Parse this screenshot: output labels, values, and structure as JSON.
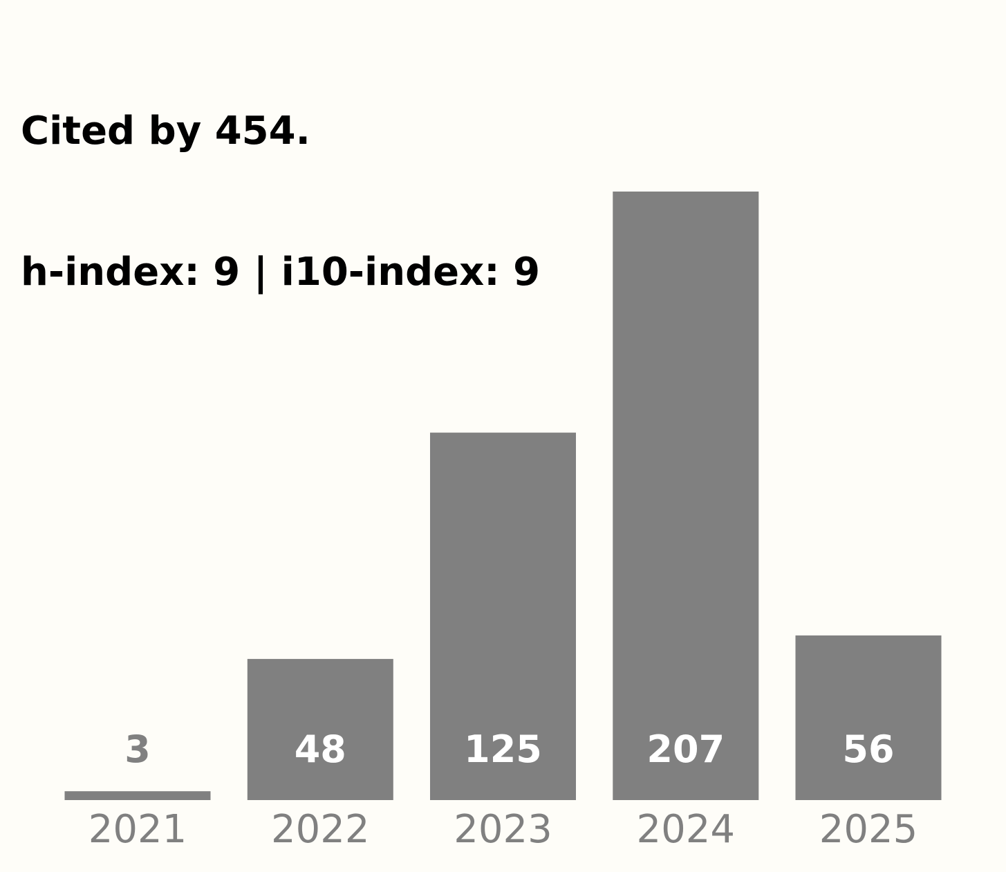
{
  "header": {
    "title_line1": "Cited by 454.",
    "title_line2": "h-index: 9 | i10-index: 9"
  },
  "colors": {
    "background": "#FEFDF8",
    "bar": "#808080",
    "label_inside": "#FFFFFF",
    "label_outside": "#808080",
    "tick": "#808080",
    "title": "#000000"
  },
  "chart_data": {
    "type": "bar",
    "title": "Cited by 454.\nh-index: 9 | i10-index: 9",
    "categories": [
      "2021",
      "2022",
      "2023",
      "2024",
      "2025"
    ],
    "values": [
      3,
      48,
      125,
      207,
      56
    ],
    "xlabel": "",
    "ylabel": "",
    "ylim": [
      0,
      207
    ],
    "grid": false,
    "legend": "none",
    "data_labels": true
  }
}
